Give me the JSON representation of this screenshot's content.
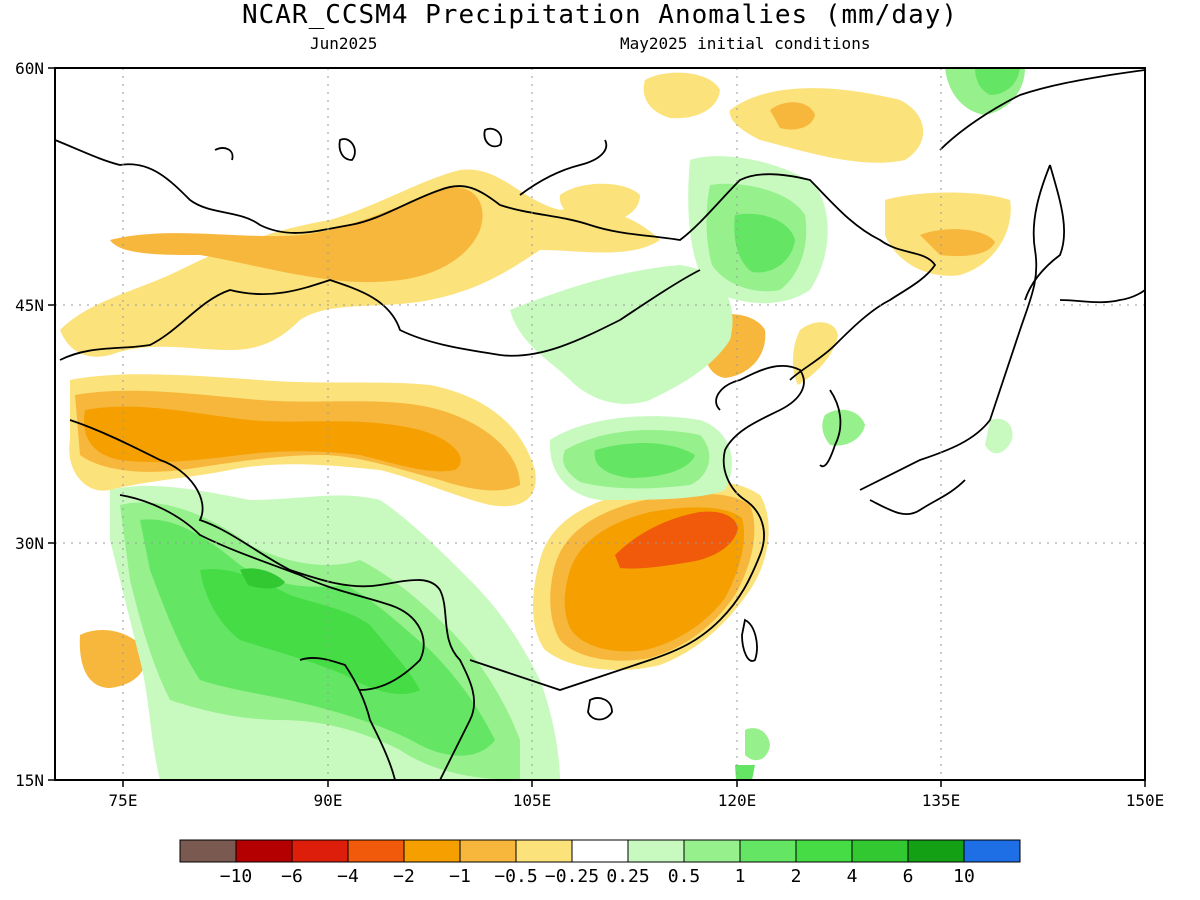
{
  "title": "NCAR_CCSM4 Precipitation Anomalies (mm/day)",
  "valid_month": "Jun2025",
  "init_conditions": "May2025 initial conditions",
  "map": {
    "lon_range": [
      70,
      150
    ],
    "lat_range": [
      15,
      60
    ],
    "lon_ticks": [
      "75E",
      "90E",
      "105E",
      "120E",
      "135E",
      "150E"
    ],
    "lat_ticks": [
      "60N",
      "45N",
      "30N",
      "15N"
    ]
  },
  "colorbar": {
    "colors": [
      "#7a5a50",
      "#b40000",
      "#dc1e0a",
      "#f05a0a",
      "#f5a000",
      "#f7b73c",
      "#fce27a",
      "#ffffff",
      "#c8fac0",
      "#96f08c",
      "#64e664",
      "#46dc46",
      "#32c832",
      "#14a014",
      "#1e6ee6"
    ],
    "labels": [
      "-10",
      "-6",
      "-4",
      "-2",
      "-1",
      "-0.5",
      "-0.25",
      "0.25",
      "0.5",
      "1",
      "2",
      "4",
      "6",
      "10"
    ]
  }
}
